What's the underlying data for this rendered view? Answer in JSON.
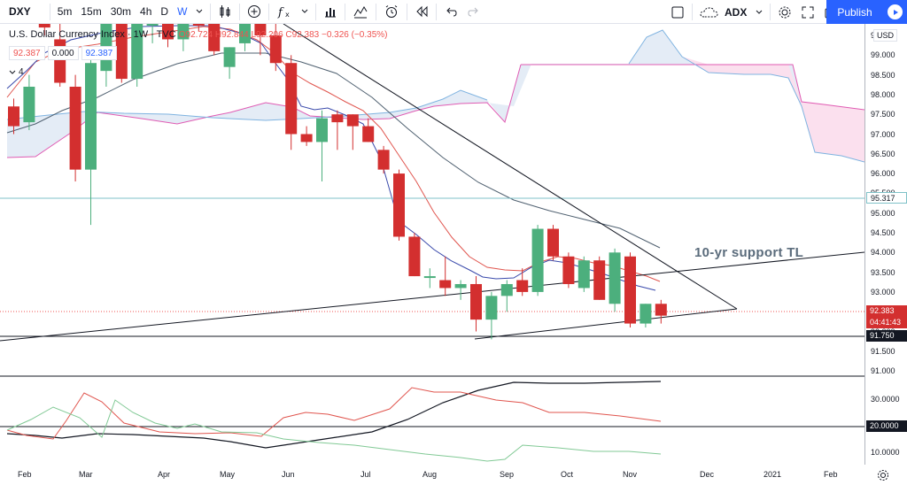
{
  "toolbar": {
    "symbol": "DXY",
    "intervals": [
      "5m",
      "15m",
      "30m",
      "4h",
      "D",
      "W"
    ],
    "active_interval": "W",
    "compare_symbol": "ADX",
    "publish_label": "Publish"
  },
  "legend": {
    "title": "U.S. Dollar Currency Index · 1W · TVC",
    "ohlc": "O92.724  H92.844  L92.206  C92.383  −0.326 (−0.35%)",
    "box1": "92.387",
    "box2": "0.000",
    "box3": "92.387",
    "collapse_count": "4"
  },
  "price_axis": {
    "currency": "USD",
    "ticks": [
      "99.500",
      "99.000",
      "98.500",
      "98.000",
      "97.500",
      "97.000",
      "96.500",
      "96.000",
      "95.500",
      "95.000",
      "94.500",
      "94.000",
      "93.500",
      "93.000",
      "92.500",
      "92.000",
      "91.500",
      "91.000"
    ],
    "ticks_lower": [
      "30.0000",
      "10.0000"
    ],
    "tag_hline_upper": "95.317",
    "tag_last_price": "92.383",
    "tag_countdown": "04:41:43",
    "tag_hline_lower": "91.750",
    "tag_adx_level": "20.0000"
  },
  "time_axis": {
    "labels": [
      "Feb",
      "Mar",
      "Apr",
      "May",
      "Jun",
      "Jul",
      "Aug",
      "Sep",
      "Oct",
      "Nov",
      "Dec",
      "2021",
      "Feb"
    ]
  },
  "annotation": "10-yr support TL",
  "colors": {
    "up": "#4caf7d",
    "down": "#d32f2f",
    "cloud_green": "#dfe9f5",
    "cloud_red": "#fbe0ee",
    "accent": "#2962ff"
  },
  "chart_data": {
    "type": "candlestick",
    "x_labels": [
      "Feb",
      "Mar",
      "Apr",
      "May",
      "Jun",
      "Jul",
      "Aug",
      "Sep",
      "Oct",
      "Nov",
      "Dec",
      "2021",
      "Feb"
    ],
    "ylim": [
      90.8,
      100.0
    ],
    "candles": [
      {
        "o": 97.7,
        "h": 97.9,
        "l": 97.0,
        "c": 97.2
      },
      {
        "o": 97.3,
        "h": 98.5,
        "l": 97.1,
        "c": 98.2
      },
      {
        "o": 99.9,
        "h": 100.0,
        "l": 99.5,
        "c": 99.7
      },
      {
        "o": 99.4,
        "h": 99.9,
        "l": 98.2,
        "c": 98.3
      },
      {
        "o": 98.2,
        "h": 98.5,
        "l": 95.8,
        "c": 96.1
      },
      {
        "o": 96.1,
        "h": 99.0,
        "l": 94.7,
        "c": 98.8
      },
      {
        "o": 98.6,
        "h": 100.0,
        "l": 98.2,
        "c": 99.9
      },
      {
        "o": 99.9,
        "h": 100.0,
        "l": 98.3,
        "c": 98.4
      },
      {
        "o": 98.4,
        "h": 100.0,
        "l": 98.2,
        "c": 99.9
      },
      {
        "o": 99.8,
        "h": 100.0,
        "l": 99.3,
        "c": 99.9
      },
      {
        "o": 99.9,
        "h": 100.0,
        "l": 99.2,
        "c": 99.4
      },
      {
        "o": 99.4,
        "h": 100.0,
        "l": 99.1,
        "c": 100.0
      },
      {
        "o": 100.0,
        "h": 100.0,
        "l": 99.6,
        "c": 99.9
      },
      {
        "o": 99.9,
        "h": 100.0,
        "l": 99.0,
        "c": 99.1
      },
      {
        "o": 98.7,
        "h": 99.2,
        "l": 98.4,
        "c": 99.2
      },
      {
        "o": 99.3,
        "h": 100.0,
        "l": 99.1,
        "c": 99.8
      },
      {
        "o": 99.8,
        "h": 100.0,
        "l": 99.0,
        "c": 99.5
      },
      {
        "o": 99.5,
        "h": 99.9,
        "l": 98.6,
        "c": 98.8
      },
      {
        "o": 98.8,
        "h": 99.0,
        "l": 96.6,
        "c": 97.0
      },
      {
        "o": 97.0,
        "h": 97.2,
        "l": 96.7,
        "c": 96.8
      },
      {
        "o": 96.8,
        "h": 97.6,
        "l": 95.8,
        "c": 97.4
      },
      {
        "o": 97.5,
        "h": 97.6,
        "l": 96.6,
        "c": 97.3
      },
      {
        "o": 97.5,
        "h": 97.5,
        "l": 96.6,
        "c": 97.2
      },
      {
        "o": 97.2,
        "h": 97.4,
        "l": 96.8,
        "c": 96.8
      },
      {
        "o": 96.6,
        "h": 96.7,
        "l": 96.0,
        "c": 96.1
      },
      {
        "o": 96.0,
        "h": 96.1,
        "l": 94.3,
        "c": 94.4
      },
      {
        "o": 94.4,
        "h": 94.5,
        "l": 93.4,
        "c": 93.4
      },
      {
        "o": 93.4,
        "h": 93.6,
        "l": 93.1,
        "c": 93.4
      },
      {
        "o": 93.3,
        "h": 93.9,
        "l": 92.9,
        "c": 93.1
      },
      {
        "o": 93.1,
        "h": 93.3,
        "l": 92.8,
        "c": 93.2
      },
      {
        "o": 93.2,
        "h": 93.4,
        "l": 92.0,
        "c": 92.3
      },
      {
        "o": 92.3,
        "h": 93.0,
        "l": 91.8,
        "c": 92.9
      },
      {
        "o": 92.9,
        "h": 93.3,
        "l": 92.5,
        "c": 93.2
      },
      {
        "o": 93.3,
        "h": 93.6,
        "l": 92.9,
        "c": 93.0
      },
      {
        "o": 93.0,
        "h": 94.7,
        "l": 92.9,
        "c": 94.6
      },
      {
        "o": 94.6,
        "h": 94.7,
        "l": 93.8,
        "c": 93.9
      },
      {
        "o": 93.9,
        "h": 94.0,
        "l": 93.1,
        "c": 93.2
      },
      {
        "o": 93.1,
        "h": 93.9,
        "l": 93.0,
        "c": 93.8
      },
      {
        "o": 93.8,
        "h": 93.9,
        "l": 92.8,
        "c": 92.8
      },
      {
        "o": 92.7,
        "h": 94.1,
        "l": 92.5,
        "c": 94.0
      },
      {
        "o": 93.9,
        "h": 94.0,
        "l": 92.1,
        "c": 92.2
      },
      {
        "o": 92.2,
        "h": 92.7,
        "l": 92.1,
        "c": 92.7
      },
      {
        "o": 92.7,
        "h": 92.8,
        "l": 92.2,
        "c": 92.4
      }
    ]
  }
}
